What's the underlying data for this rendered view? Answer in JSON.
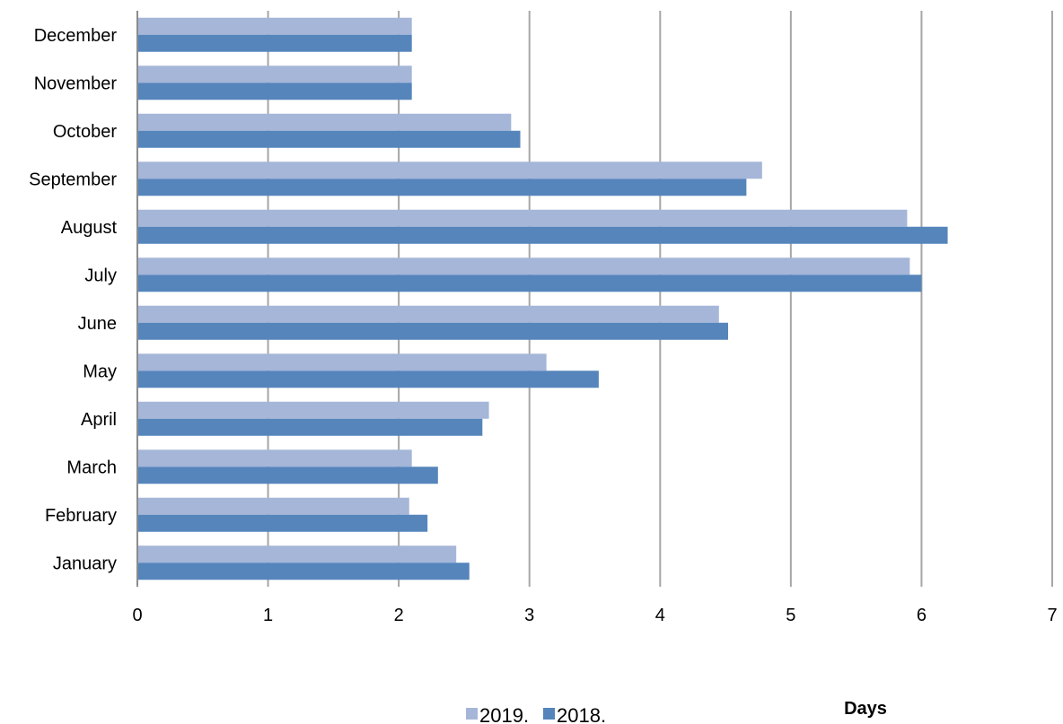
{
  "chart_data": {
    "type": "bar",
    "orientation": "horizontal",
    "categories": [
      "January",
      "February",
      "March",
      "April",
      "May",
      "June",
      "July",
      "August",
      "September",
      "October",
      "November",
      "December"
    ],
    "series": [
      {
        "name": "2019.",
        "color": "#a5b6d8",
        "values": [
          2.44,
          2.08,
          2.1,
          2.69,
          3.13,
          4.45,
          5.91,
          5.89,
          4.78,
          2.86,
          2.1,
          2.1
        ]
      },
      {
        "name": "2018.",
        "color": "#5585bb",
        "values": [
          2.54,
          2.22,
          2.3,
          2.64,
          3.53,
          4.52,
          6.0,
          6.2,
          4.66,
          2.93,
          2.1,
          2.1
        ]
      }
    ],
    "xlim": [
      0,
      7
    ],
    "xticks": [
      0,
      1,
      2,
      3,
      4,
      5,
      6,
      7
    ],
    "xlabel": "Days",
    "ylabel": "",
    "grid": "vertical",
    "legend_position": "bottom"
  }
}
